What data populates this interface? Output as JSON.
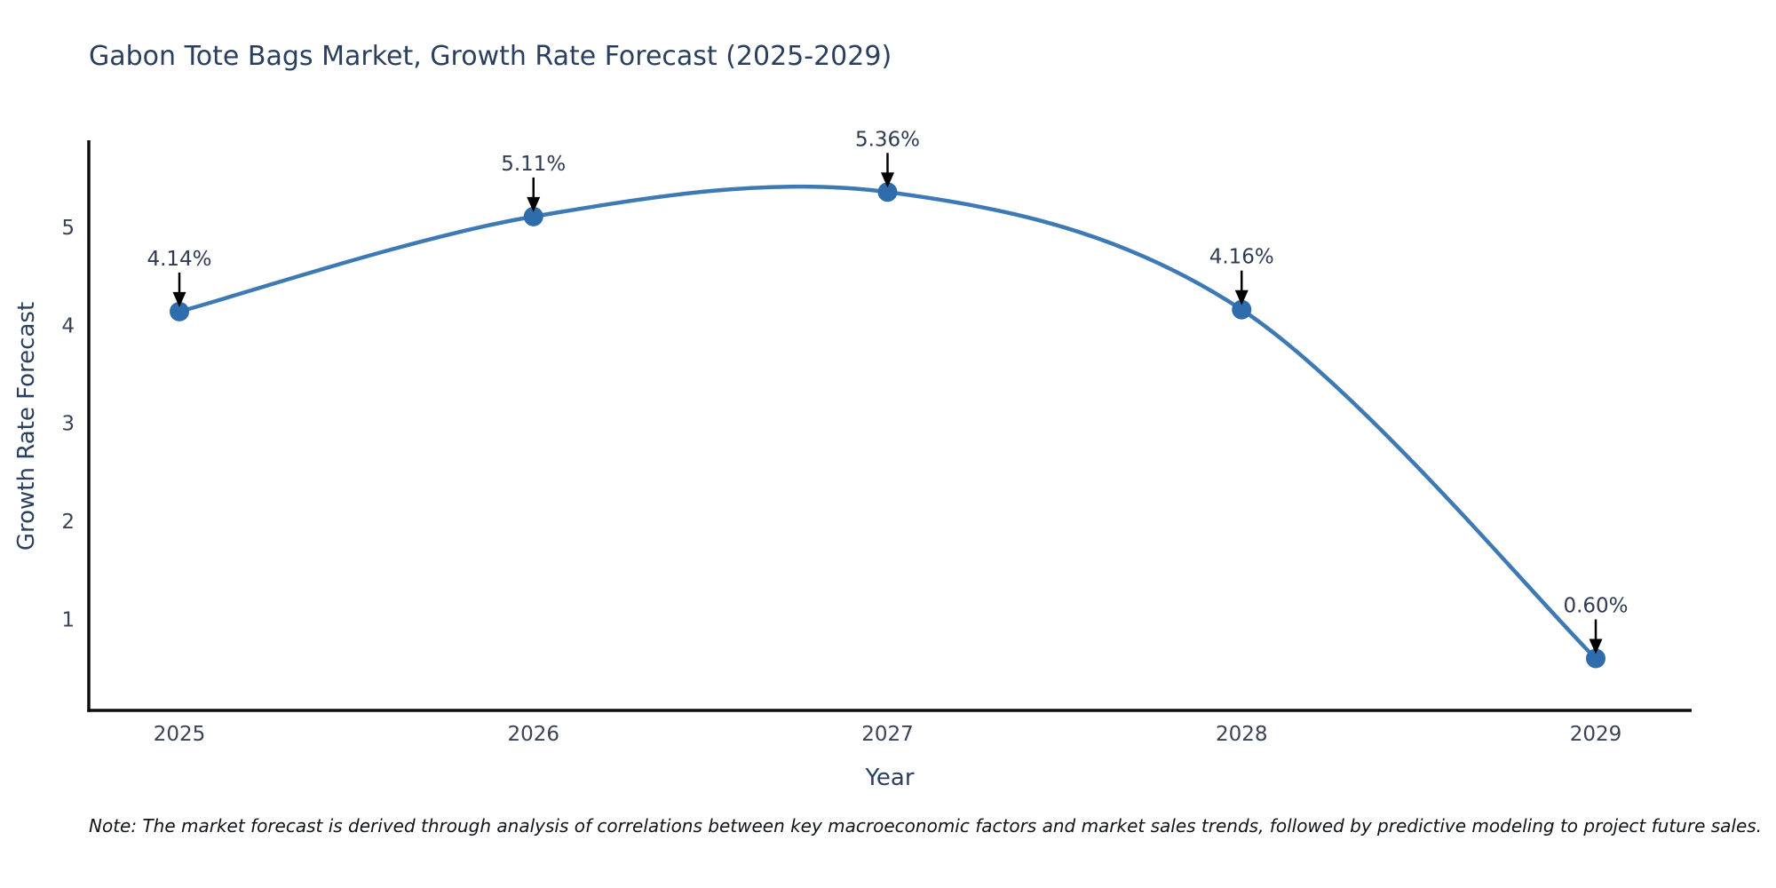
{
  "page": {
    "title": "Gabon Tote Bags Market, Growth Rate Forecast (2025-2029)",
    "note": "Note: The market forecast is derived through analysis of correlations between key macroeconomic factors and market sales trends, followed by predictive modeling to project future sales."
  },
  "chart_data": {
    "type": "line",
    "title": "Gabon Tote Bags Market, Growth Rate Forecast (2025-2029)",
    "xlabel": "Year",
    "ylabel": "Growth Rate Forecast",
    "x": [
      2025,
      2026,
      2027,
      2028,
      2029
    ],
    "values": [
      4.14,
      5.11,
      5.36,
      4.16,
      0.6
    ],
    "labels": [
      "4.14%",
      "5.11%",
      "5.36%",
      "4.16%",
      "0.60%"
    ],
    "yticks": [
      1,
      2,
      3,
      4,
      5
    ],
    "ylim": [
      0.07,
      5.87
    ],
    "line_shape": "spline",
    "grid": false,
    "legend_position": "none",
    "line_color": "#3d7ab5",
    "marker_color": "#2f6cab",
    "axis_color": "#0d0d0d",
    "annotation_arrow_color": "#000000"
  }
}
